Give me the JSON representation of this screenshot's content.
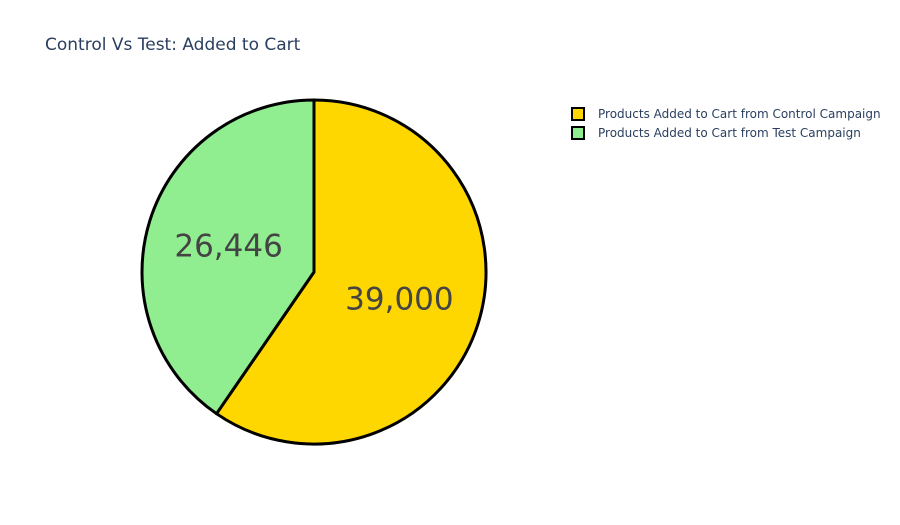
{
  "chart_data": {
    "type": "pie",
    "title": "Control Vs Test: Added to Cart",
    "labels": [
      "Products Added to Cart from Control Campaign",
      "Products Added to Cart from Test Campaign"
    ],
    "values": [
      39000,
      26446
    ],
    "value_labels": [
      "39,000",
      "26,446"
    ],
    "colors": [
      "#FFD700",
      "#90EE90"
    ],
    "slice_outline_color": "#000000",
    "direction": "clockwise",
    "start": "top",
    "legend_position": "top-right"
  }
}
